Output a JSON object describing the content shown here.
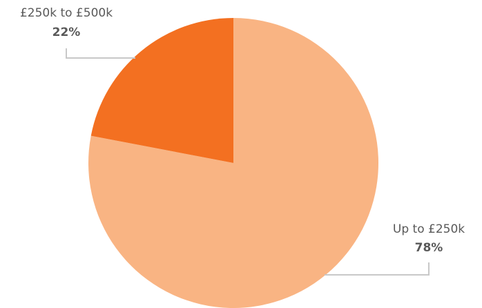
{
  "chart_data": {
    "type": "pie",
    "title": "",
    "start_angle_deg": 0,
    "direction": "clockwise",
    "slices": [
      {
        "label": "Up to £250k",
        "value": 78,
        "value_label": "78%",
        "color": "#F9B483"
      },
      {
        "label": "£250k to £500k",
        "value": 22,
        "value_label": "22%",
        "color": "#F37021"
      }
    ],
    "legend": "none"
  }
}
